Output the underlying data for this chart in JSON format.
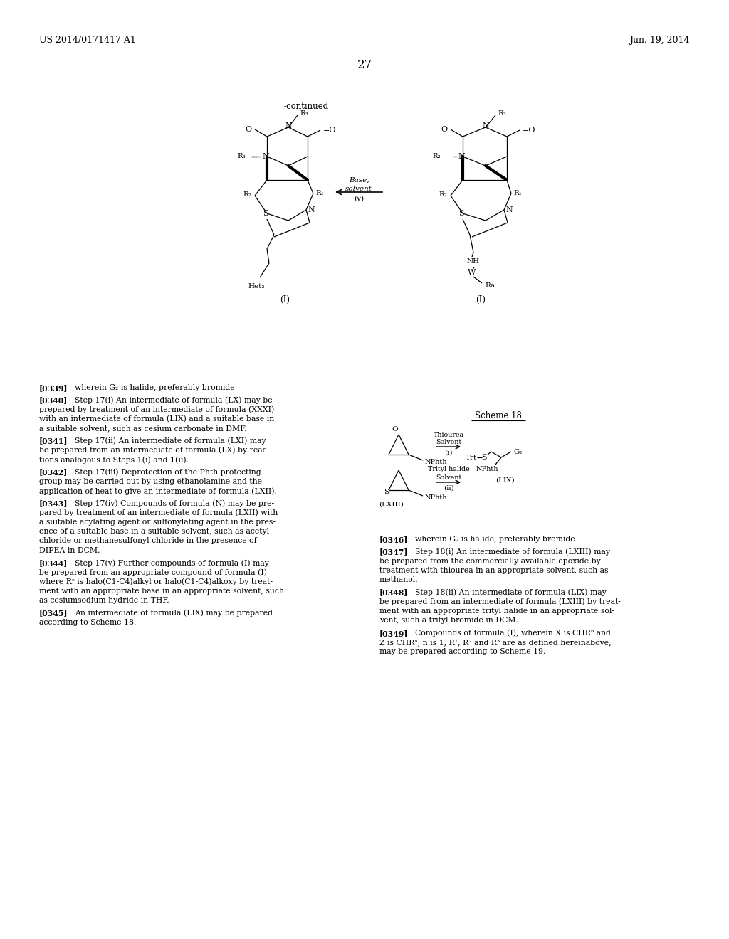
{
  "background_color": "#ffffff",
  "header_left": "US 2014/0171417 A1",
  "header_right": "Jun. 19, 2014",
  "page_number": "27",
  "continued_label": "-continued",
  "scheme18_label": "Scheme 18",
  "paragraphs_left": [
    {
      "tag": "[0339]",
      "lines": [
        "wherein G₂ is halide, preferably bromide"
      ]
    },
    {
      "tag": "[0340]",
      "lines": [
        "Step 17(i) An intermediate of formula (LX) may be",
        "prepared by treatment of an intermediate of formula (XXXI)",
        "with an intermediate of formula (LIX) and a suitable base in",
        "a suitable solvent, such as cesium carbonate in DMF."
      ]
    },
    {
      "tag": "[0341]",
      "lines": [
        "Step 17(ii) An intermediate of formula (LXI) may",
        "be prepared from an intermediate of formula (LX) by reac-",
        "tions analogous to Steps 1(i) and 1(ii)."
      ]
    },
    {
      "tag": "[0342]",
      "lines": [
        "Step 17(iii) Deprotection of the Phth protecting",
        "group may be carried out by using ethanolamine and the",
        "application of heat to give an intermediate of formula (LXII)."
      ]
    },
    {
      "tag": "[0343]",
      "lines": [
        "Step 17(iv) Compounds of formula (N) may be pre-",
        "pared by treatment of an intermediate of formula (LXII) with",
        "a suitable acylating agent or sulfonylating agent in the pres-",
        "ence of a suitable base in a suitable solvent, such as acetyl",
        "chloride or methanesulfonyl chloride in the presence of",
        "DIPEA in DCM."
      ]
    },
    {
      "tag": "[0344]",
      "lines": [
        "Step 17(v) Further compounds of formula (I) may",
        "be prepared from an appropriate compound of formula (I)",
        "where Rᶜ is halo(C1-C4)alkyl or halo(C1-C4)alkoxy by treat-",
        "ment with an appropriate base in an appropriate solvent, such",
        "as cesiumsodium hydride in THF."
      ]
    },
    {
      "tag": "[0345]",
      "lines": [
        "An intermediate of formula (LIX) may be prepared",
        "according to Scheme 18."
      ]
    }
  ],
  "paragraphs_right": [
    {
      "tag": "[0346]",
      "lines": [
        "wherein G₂ is halide, preferably bromide"
      ]
    },
    {
      "tag": "[0347]",
      "lines": [
        "Step 18(i) An intermediate of formula (LXIII) may",
        "be prepared from the commercially available epoxide by",
        "treatment with thiourea in an appropriate solvent, such as",
        "methanol."
      ]
    },
    {
      "tag": "[0348]",
      "lines": [
        "Step 18(ii) An intermediate of formula (LIX) may",
        "be prepared from an intermediate of formula (LXIII) by treat-",
        "ment with an appropriate trityl halide in an appropriate sol-",
        "vent, such a trityl bromide in DCM."
      ]
    },
    {
      "tag": "[0349]",
      "lines": [
        "Compounds of formula (I), wherein X is CHRᵇ and",
        "Z is CHRᵃ, n is 1, R¹, R² and R³ are as defined hereinabove,",
        "may be prepared according to Scheme 19."
      ]
    }
  ]
}
